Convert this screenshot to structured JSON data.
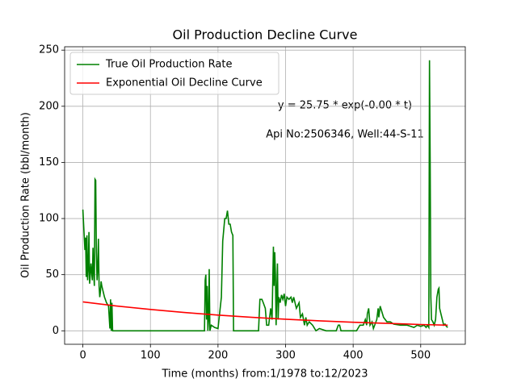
{
  "chart_data": {
    "type": "line",
    "title": "Oil Production Decline Curve",
    "x_label": "Time (months) from:1/1978 to:12/2023",
    "y_label": "Oil Production Rate (bbl/month)",
    "annotations": [
      "y = 25.75 * exp(-0.00 * t)",
      "Api No:2506346, Well:44-S-11"
    ],
    "xlim": [
      -27,
      566
    ],
    "ylim": [
      -12,
      253
    ],
    "xticks": [
      0,
      100,
      200,
      300,
      400,
      500
    ],
    "yticks": [
      0,
      50,
      100,
      150,
      200,
      250
    ],
    "grid": true,
    "legend": "upper left",
    "series": [
      {
        "name": "True Oil Production Rate",
        "color": "#008000",
        "x": [
          0,
          2,
          3,
          4,
          5,
          6,
          7,
          8,
          9,
          10,
          11,
          12,
          14,
          15,
          16,
          17,
          18,
          19,
          20,
          21,
          22,
          23,
          24,
          25,
          26,
          27,
          28,
          30,
          32,
          35,
          38,
          40,
          41,
          42,
          43,
          44,
          100,
          180,
          181,
          182,
          183,
          184,
          185,
          186,
          187,
          188,
          190,
          195,
          200,
          205,
          207,
          210,
          212,
          214,
          216,
          218,
          220,
          222,
          223,
          260,
          262,
          265,
          267,
          270,
          272,
          275,
          278,
          280,
          282,
          283,
          284,
          285,
          286,
          287,
          288,
          289,
          290,
          292,
          294,
          296,
          298,
          300,
          302,
          305,
          308,
          310,
          312,
          316,
          320,
          322,
          325,
          328,
          330,
          332,
          335,
          340,
          345,
          350,
          360,
          375,
          378,
          380,
          382,
          395,
          405,
          410,
          415,
          418,
          420,
          421,
          423,
          425,
          428,
          430,
          435,
          437,
          438,
          440,
          442,
          445,
          450,
          455,
          460,
          470,
          480,
          490,
          495,
          500,
          505,
          508,
          510,
          512,
          513,
          514,
          515,
          516,
          518,
          520,
          522,
          524,
          526,
          527,
          528,
          530,
          532,
          534,
          536,
          538,
          540
        ],
        "values": [
          108,
          84,
          72,
          83,
          48,
          85,
          45,
          55,
          88,
          42,
          50,
          60,
          45,
          74,
          52,
          40,
          135,
          134,
          70,
          45,
          55,
          82,
          40,
          30,
          35,
          44,
          40,
          35,
          30,
          25,
          22,
          2,
          28,
          0,
          25,
          0,
          0,
          0,
          45,
          50,
          10,
          40,
          0,
          10,
          55,
          0,
          5,
          3,
          2,
          30,
          80,
          100,
          100,
          107,
          95,
          95,
          88,
          85,
          0,
          0,
          28,
          28,
          25,
          20,
          5,
          5,
          20,
          10,
          75,
          40,
          70,
          50,
          5,
          35,
          60,
          10,
          30,
          25,
          32,
          28,
          33,
          22,
          30,
          28,
          30,
          25,
          30,
          20,
          25,
          12,
          15,
          5,
          12,
          5,
          8,
          5,
          0,
          2,
          0,
          0,
          5,
          5,
          0,
          0,
          0,
          5,
          5,
          10,
          5,
          15,
          20,
          5,
          8,
          2,
          10,
          20,
          12,
          22,
          18,
          12,
          8,
          8,
          6,
          5,
          5,
          3,
          5,
          4,
          5,
          3,
          5,
          3,
          241,
          150,
          30,
          10,
          8,
          5,
          10,
          30,
          37,
          38,
          20,
          15,
          10,
          5,
          6,
          4,
          3
        ]
      },
      {
        "name": "Exponential Oil Decline Curve",
        "color": "#ff0000",
        "x": [
          0,
          50,
          100,
          150,
          200,
          250,
          300,
          350,
          400,
          450,
          500,
          540
        ],
        "values": [
          25.75,
          22.1,
          19.0,
          16.3,
          14.0,
          12.0,
          10.3,
          8.9,
          7.6,
          6.6,
          5.6,
          5.0
        ]
      }
    ]
  }
}
